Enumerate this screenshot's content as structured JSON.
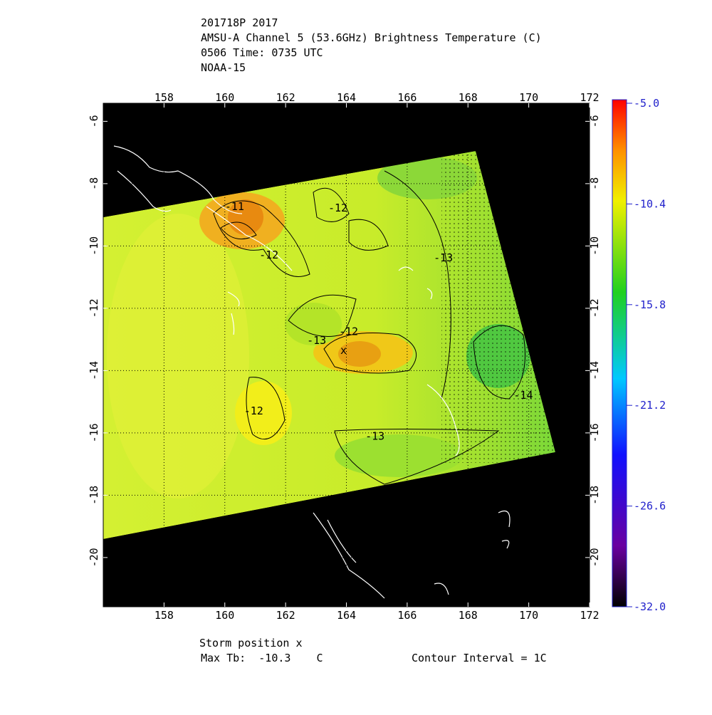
{
  "header": {
    "lines": [
      "201718P 2017",
      "AMSU-A Channel 5 (53.6GHz) Brightness Temperature (C)",
      "0506 Time: 0735 UTC",
      "NOAA-15"
    ]
  },
  "map": {
    "xlim": [
      156,
      172
    ],
    "ylim": [
      -21.58,
      -5.42
    ],
    "xticks": [
      158,
      160,
      162,
      164,
      166,
      168,
      170,
      172
    ],
    "yticks": [
      -6,
      -8,
      -10,
      -12,
      -14,
      -16,
      -18,
      -20
    ],
    "grid": true,
    "contour_labels": [
      {
        "text": "-11",
        "lon": 160.32,
        "lat": -8.73
      },
      {
        "text": "-12",
        "lon": 163.72,
        "lat": -8.78
      },
      {
        "text": "-12",
        "lon": 161.45,
        "lat": -10.29
      },
      {
        "text": "-13",
        "lon": 167.19,
        "lat": -10.38
      },
      {
        "text": "-12",
        "lon": 164.07,
        "lat": -12.75
      },
      {
        "text": "-13",
        "lon": 163.02,
        "lat": -13.03
      },
      {
        "text": "-12",
        "lon": 160.95,
        "lat": -15.29
      },
      {
        "text": "-13",
        "lon": 164.94,
        "lat": -16.11
      },
      {
        "text": "-14",
        "lon": 169.82,
        "lat": -14.79
      }
    ]
  },
  "colorbar": {
    "lim": [
      -32,
      -5
    ],
    "ticks": [
      {
        "value": -5,
        "label": "-5.0"
      },
      -10.4,
      -15.8,
      -21.2,
      -26.6,
      {
        "value": -32,
        "label": "-32.0"
      }
    ]
  },
  "footer": {
    "storm": "Storm position x",
    "max_tb": "Max Tb:  -10.3    C",
    "contour_interval": "Contour Interval = 1C"
  }
}
